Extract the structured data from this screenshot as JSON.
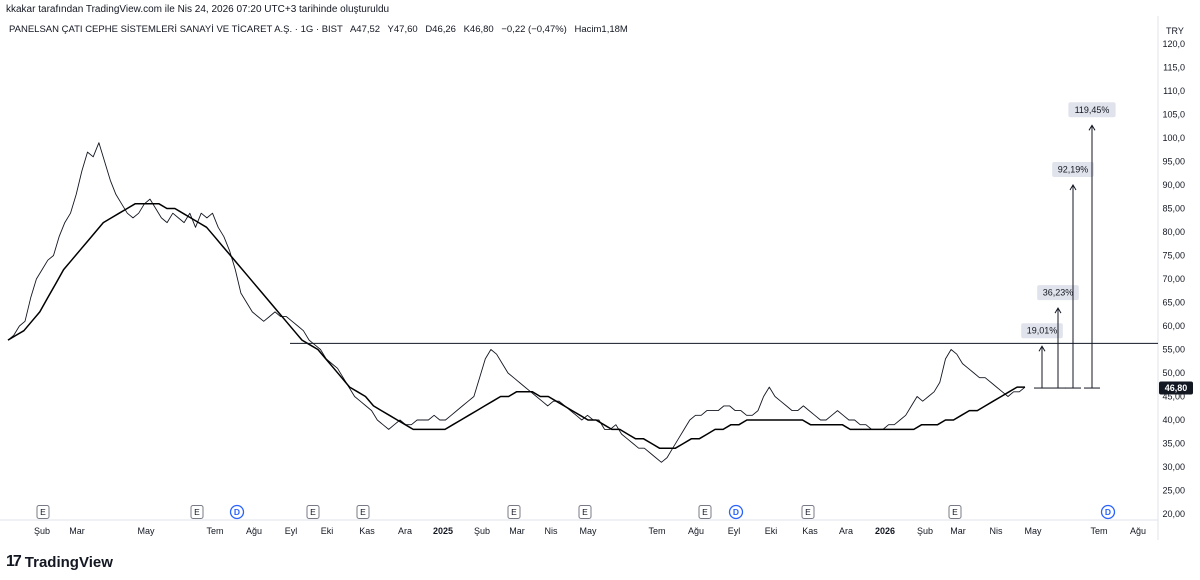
{
  "caption": "kkakar tarafından TradingView.com ile Nis 24, 2026 07:20 UTC+3 tarihinde oluşturuldu",
  "header": {
    "symbol": "PANELSAN ÇATI CEPHE SİSTEMLERİ SANAYİ VE TİCARET A.Ş. · 1G · BIST",
    "open": "A47,52",
    "high": "Y47,60",
    "low": "D46,26",
    "close": "K46,80",
    "change": "−0,22 (−0,47%)",
    "volume": "Hacim1,18M"
  },
  "brand": {
    "logo_mark": "17",
    "logo_text": "TradingView"
  },
  "chart_data": {
    "type": "line",
    "currency": "TRY",
    "last_price": "46,80",
    "ylim": [
      20,
      122
    ],
    "y_ticks": [
      20,
      25,
      30,
      35,
      40,
      45,
      50,
      55,
      60,
      65,
      70,
      75,
      80,
      85,
      90,
      95,
      100,
      105,
      110,
      115,
      120
    ],
    "y_tick_labels": [
      "20,00",
      "25,00",
      "30,00",
      "35,00",
      "40,00",
      "45,00",
      "50,00",
      "55,00",
      "60,00",
      "65,00",
      "70,00",
      "75,00",
      "80,00",
      "85,00",
      "90,00",
      "95,00",
      "100,0",
      "105,0",
      "110,0",
      "115,0",
      "120,0"
    ],
    "x_labels": [
      {
        "label": "Şub",
        "bold": false
      },
      {
        "label": "Mar",
        "bold": false
      },
      {
        "label": "May",
        "bold": false
      },
      {
        "label": "Tem",
        "bold": false
      },
      {
        "label": "Ağu",
        "bold": false
      },
      {
        "label": "Eyl",
        "bold": false
      },
      {
        "label": "Eki",
        "bold": false
      },
      {
        "label": "Kas",
        "bold": false
      },
      {
        "label": "Ara",
        "bold": false
      },
      {
        "label": "2025",
        "bold": true
      },
      {
        "label": "Şub",
        "bold": false
      },
      {
        "label": "Mar",
        "bold": false
      },
      {
        "label": "Nis",
        "bold": false
      },
      {
        "label": "May",
        "bold": false
      },
      {
        "label": "Tem",
        "bold": false
      },
      {
        "label": "Ağu",
        "bold": false
      },
      {
        "label": "Eyl",
        "bold": false
      },
      {
        "label": "Eki",
        "bold": false
      },
      {
        "label": "Kas",
        "bold": false
      },
      {
        "label": "Ara",
        "bold": false
      },
      {
        "label": "2026",
        "bold": true
      },
      {
        "label": "Şub",
        "bold": false
      },
      {
        "label": "Mar",
        "bold": false
      },
      {
        "label": "Nis",
        "bold": false
      },
      {
        "label": "May",
        "bold": false
      },
      {
        "label": "Tem",
        "bold": false
      },
      {
        "label": "Ağu",
        "bold": false
      }
    ],
    "series": [
      {
        "values": [
          57,
          58,
          60,
          61,
          66,
          70,
          72,
          74,
          75,
          79,
          82,
          84,
          88,
          93,
          97,
          96,
          99,
          95,
          91,
          88,
          86,
          84,
          83,
          84,
          86,
          87,
          85,
          83,
          82,
          84,
          83,
          82,
          84,
          81,
          84,
          83,
          84,
          81,
          79,
          76,
          72,
          67,
          65,
          63,
          62,
          61,
          62,
          63,
          62,
          62,
          61,
          60,
          59,
          57,
          56,
          55,
          53,
          52,
          51,
          49,
          47,
          45,
          44,
          43,
          42,
          40,
          39,
          38,
          39,
          40,
          39,
          39,
          40,
          40,
          40,
          41,
          40,
          40,
          41,
          42,
          43,
          44,
          45,
          49,
          53,
          55,
          54,
          52,
          50,
          49,
          48,
          47,
          46,
          45,
          44,
          43,
          44,
          44,
          43,
          42,
          41,
          40,
          41,
          40,
          40,
          38,
          38,
          39,
          37,
          36,
          35,
          34,
          34,
          33,
          32,
          31,
          32,
          34,
          36,
          38,
          40,
          41,
          41,
          42,
          42,
          42,
          43,
          43,
          42,
          42,
          41,
          41,
          42,
          45,
          47,
          45,
          44,
          43,
          42,
          42,
          43,
          42,
          41,
          40,
          40,
          41,
          42,
          41,
          40,
          40,
          39,
          39,
          38,
          38,
          38,
          39,
          39,
          40,
          41,
          43,
          45,
          44,
          45,
          46,
          48,
          53,
          55,
          54,
          52,
          51,
          50,
          49,
          49,
          48,
          47,
          46,
          45,
          46,
          46,
          47
        ]
      },
      {
        "values": [
          57,
          58,
          59,
          61,
          63,
          66,
          69,
          72,
          74,
          76,
          78,
          80,
          82,
          83,
          84,
          85,
          86,
          86,
          86,
          86,
          85,
          85,
          84,
          83,
          82,
          81,
          79,
          77,
          75,
          73,
          71,
          69,
          67,
          65,
          63,
          61,
          59,
          57,
          56,
          55,
          53,
          51,
          49,
          47,
          46,
          45,
          43,
          42,
          41,
          40,
          39,
          38,
          38,
          38,
          38,
          38,
          39,
          40,
          41,
          42,
          43,
          44,
          45,
          45,
          46,
          46,
          46,
          45,
          45,
          44,
          43,
          42,
          41,
          40,
          40,
          39,
          38,
          38,
          37,
          36,
          36,
          35,
          34,
          34,
          34,
          35,
          36,
          36,
          37,
          38,
          38,
          39,
          39,
          40,
          40,
          40,
          40,
          40,
          40,
          40,
          40,
          39,
          39,
          39,
          39,
          39,
          38,
          38,
          38,
          38,
          38,
          38,
          38,
          38,
          38,
          39,
          39,
          39,
          40,
          40,
          41,
          42,
          42,
          43,
          44,
          45,
          46,
          47,
          47
        ]
      }
    ],
    "horizontal_level": 56.3,
    "targets": [
      {
        "label": "19,01%",
        "value": 55.7
      },
      {
        "label": "36,23%",
        "value": 63.8
      },
      {
        "label": "92,19%",
        "value": 90.0
      },
      {
        "label": "119,45%",
        "value": 102.7
      }
    ],
    "target_base": 46.8,
    "event_markers": [
      {
        "label": "E",
        "type": "earnings"
      },
      {
        "label": "E",
        "type": "earnings"
      },
      {
        "label": "D",
        "type": "dividend"
      },
      {
        "label": "E",
        "type": "earnings"
      },
      {
        "label": "E",
        "type": "earnings"
      },
      {
        "label": "E",
        "type": "earnings"
      },
      {
        "label": "E",
        "type": "earnings"
      },
      {
        "label": "E",
        "type": "earnings"
      },
      {
        "label": "D",
        "type": "dividend"
      },
      {
        "label": "E",
        "type": "earnings"
      },
      {
        "label": "E",
        "type": "earnings"
      },
      {
        "label": "D",
        "type": "dividend"
      }
    ],
    "colors": {
      "price": "#131722",
      "ma": "#000000",
      "dividend": "#2962ff",
      "grid": "#ffffff",
      "last_price_bg": "#131722"
    }
  }
}
